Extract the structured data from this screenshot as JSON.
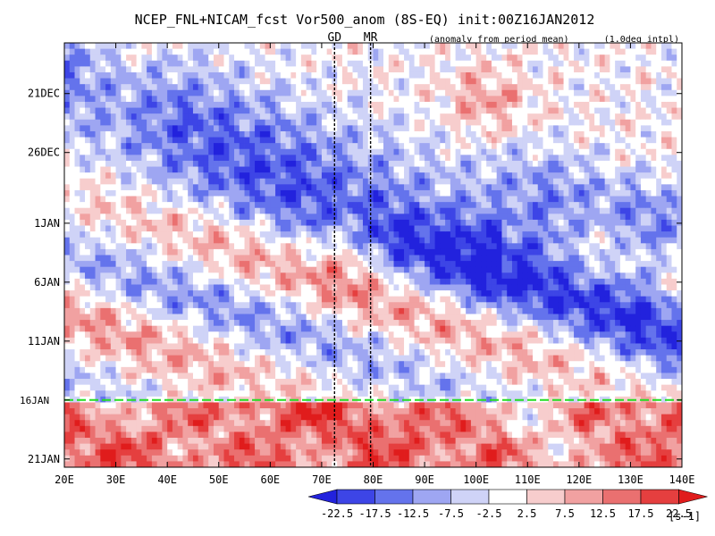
{
  "chart_data": {
    "type": "heatmap",
    "title": "NCEP_FNL+NICAM_fcst Vor500_anom (8S-EQ) init:00Z16JAN2012",
    "subtitle_left": "(anomaly from period mean)",
    "subtitle_right": "(1.0deg intpl)",
    "x_axis": {
      "range": [
        20,
        140
      ],
      "ticks": [
        {
          "value": 20,
          "label": "20E"
        },
        {
          "value": 30,
          "label": "30E"
        },
        {
          "value": 40,
          "label": "40E"
        },
        {
          "value": 50,
          "label": "50E"
        },
        {
          "value": 60,
          "label": "60E"
        },
        {
          "value": 70,
          "label": "70E"
        },
        {
          "value": 80,
          "label": "80E"
        },
        {
          "value": 90,
          "label": "90E"
        },
        {
          "value": 100,
          "label": "100E"
        },
        {
          "value": 110,
          "label": "110E"
        },
        {
          "value": 120,
          "label": "120E"
        },
        {
          "value": 130,
          "label": "130E"
        },
        {
          "value": 140,
          "label": "140E"
        }
      ]
    },
    "y_axis": {
      "range_days": [
        0,
        36
      ],
      "start_note": "top edge ~17DEC2011, bottom edge ~22JAN2012",
      "ticks": [
        {
          "day": 4.3,
          "label": "21DEC"
        },
        {
          "day": 9.3,
          "label": "26DEC"
        },
        {
          "day": 15.3,
          "label": "1JAN"
        },
        {
          "day": 20.3,
          "label": "6JAN"
        },
        {
          "day": 25.3,
          "label": "11JAN"
        },
        {
          "day": 30.3,
          "label": "16JAN"
        },
        {
          "day": 35.3,
          "label": "21JAN"
        }
      ]
    },
    "markers": [
      {
        "label": "GD",
        "lon": 72.5
      },
      {
        "label": "MR",
        "lon": 79.5
      }
    ],
    "init_line": {
      "day": 30.3,
      "label": "16JAN",
      "color": "#22dd22"
    },
    "colorbar": {
      "labels": [
        "-22.5",
        "-17.5",
        "-12.5",
        "-7.5",
        "-2.5",
        "2.5",
        "7.5",
        "12.5",
        "17.5",
        "22.5"
      ],
      "units": "[s-1]",
      "colors": [
        "#2222dd",
        "#3d45e6",
        "#6473ec",
        "#9ea6f2",
        "#cfd3f7",
        "#ffffff",
        "#f7cdcd",
        "#f1a1a1",
        "#ea7070",
        "#e53f3f",
        "#e01c1c"
      ]
    }
  }
}
